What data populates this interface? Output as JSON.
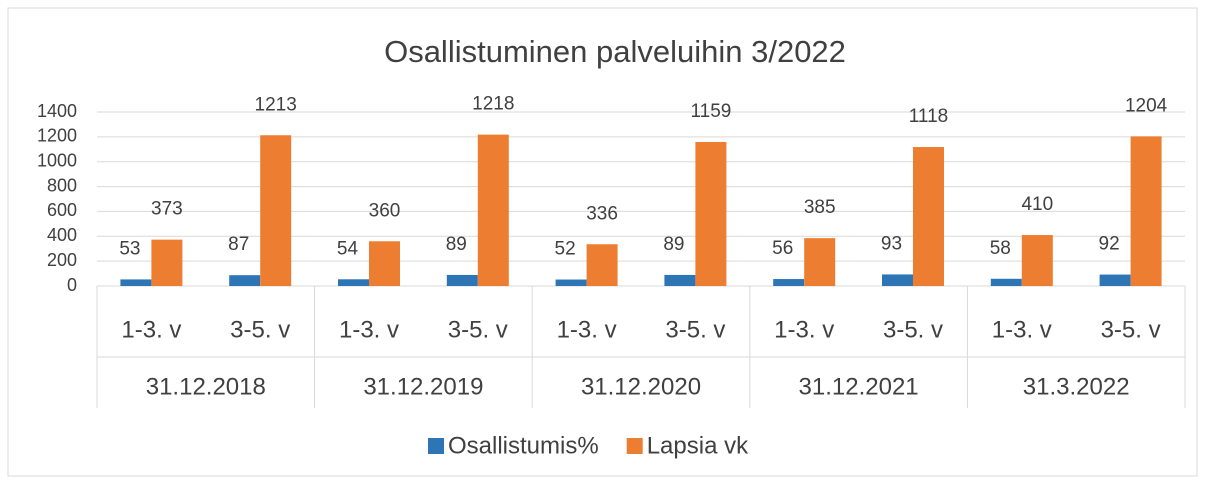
{
  "chart_data": {
    "type": "bar",
    "title": "Osallistuminen palveluihin 3/2022",
    "categories": [
      "1-3. v",
      "3-5. v",
      "1-3. v",
      "3-5. v",
      "1-3. v",
      "3-5. v",
      "1-3. v",
      "3-5. v",
      "1-3. v",
      "3-5. v"
    ],
    "groups": [
      "31.12.2018",
      "31.12.2019",
      "31.12.2020",
      "31.12.2021",
      "31.3.2022"
    ],
    "series": [
      {
        "name": "Osallistumis%",
        "color": "#2e75b6",
        "values": [
          53,
          87,
          54,
          89,
          52,
          89,
          56,
          93,
          58,
          92
        ]
      },
      {
        "name": "Lapsia vk",
        "color": "#ed7d31",
        "values": [
          373,
          1213,
          360,
          1218,
          336,
          1159,
          385,
          1118,
          410,
          1204
        ]
      }
    ],
    "ylim": [
      0,
      1400
    ],
    "yticks": [
      0,
      200,
      400,
      600,
      800,
      1000,
      1200,
      1400
    ],
    "grid": true,
    "legend": "bottom"
  }
}
